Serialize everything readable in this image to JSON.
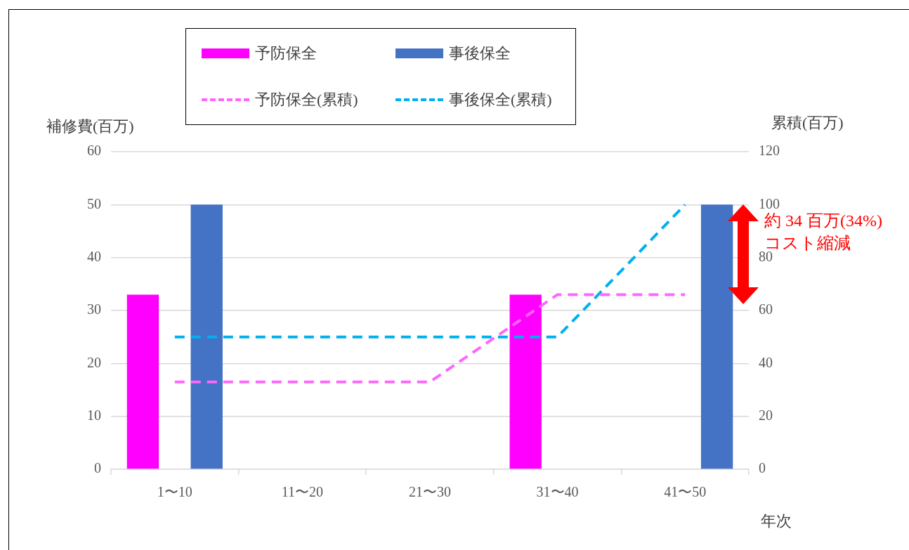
{
  "chart_data": {
    "type": "bar",
    "categories": [
      "1〜10",
      "11〜20",
      "21〜30",
      "31〜40",
      "41〜50"
    ],
    "series": [
      {
        "name": "予防保全",
        "color": "#ff00ff",
        "values": [
          33,
          0,
          0,
          33,
          0
        ]
      },
      {
        "name": "事後保全",
        "color": "#4472c4",
        "values": [
          50,
          0,
          0,
          0,
          50
        ]
      },
      {
        "name": "予防保全(累積)",
        "type": "line",
        "axis": "y2",
        "color": "#ff66ff",
        "line_style": "dashed",
        "values": [
          33,
          33,
          33,
          66,
          66
        ]
      },
      {
        "name": "事後保全(累積)",
        "type": "line",
        "axis": "y2",
        "color": "#00b0f0",
        "line_style": "dashed",
        "values": [
          50,
          50,
          50,
          50,
          100
        ]
      }
    ],
    "xlabel": "年次",
    "ylabel": "補修費(百万)",
    "y2label": "累積(百万)",
    "ylim": [
      0,
      60
    ],
    "yticks": [
      0,
      10,
      20,
      30,
      40,
      50,
      60
    ],
    "y2lim": [
      0,
      120
    ],
    "y2ticks": [
      0,
      20,
      40,
      60,
      80,
      100,
      120
    ],
    "grid": "y",
    "legend": "top",
    "marker": "none",
    "annotations": [
      "約 34 百万(34%)\nコスト縮減"
    ]
  }
}
